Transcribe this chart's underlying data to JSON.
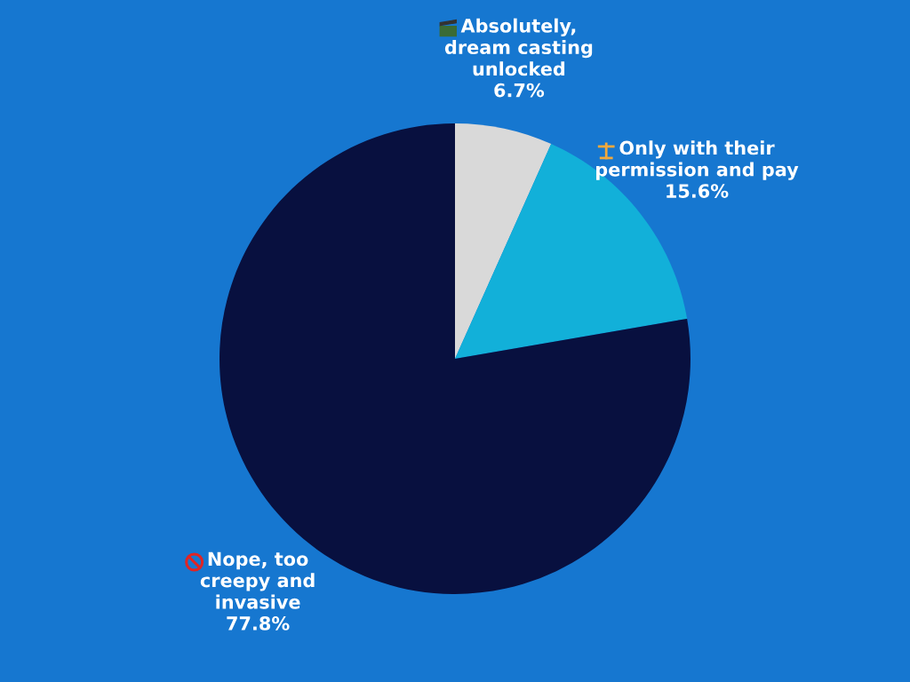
{
  "chart_data": {
    "type": "pie",
    "categories": [
      "Absolutely,\ndream casting\nunlocked",
      "Only with their\npermission and pay",
      "Nope, too\ncreepy and\ninvasive"
    ],
    "values": [
      6.7,
      15.6,
      77.8
    ],
    "value_labels": [
      "6.7%",
      "15.6%",
      "77.8%"
    ],
    "colors": [
      "#d9d9d9",
      "#12b0d9",
      "#08103f"
    ],
    "legend": false
  }
}
